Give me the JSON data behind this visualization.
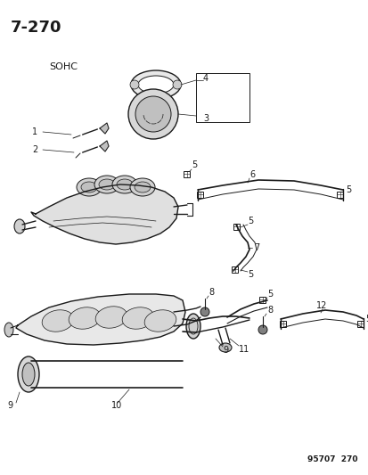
{
  "title": "7-270",
  "subtitle": "SOHC",
  "footer": "95707  270",
  "bg_color": "#ffffff",
  "line_color": "#1a1a1a",
  "title_fontsize": 13,
  "footer_fontsize": 6.5,
  "label_fontsize": 7,
  "page_num_fontsize": 9
}
